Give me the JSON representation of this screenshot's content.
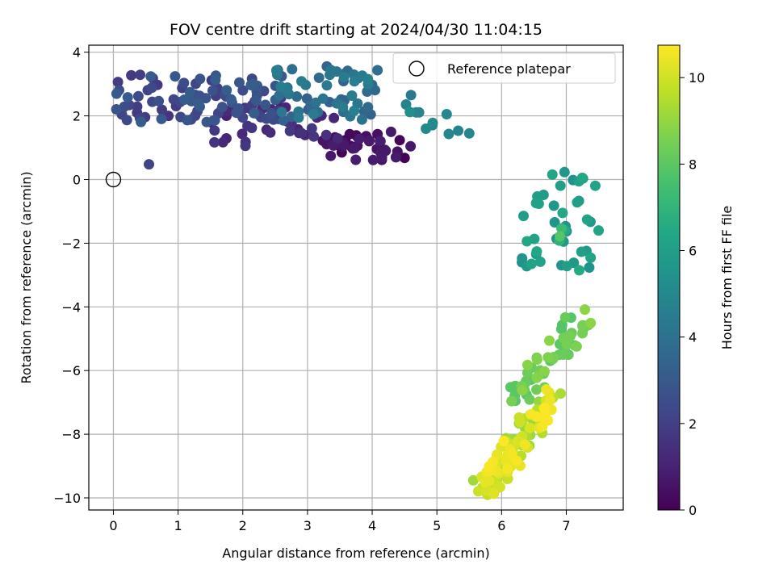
{
  "chart_data": {
    "type": "scatter",
    "title": "FOV centre drift starting at 2024/04/30 11:04:15",
    "xlabel": "Angular distance from reference (arcmin)",
    "ylabel": "Rotation from reference (arcmin)",
    "xlim": [
      -0.38,
      7.88
    ],
    "ylim": [
      -10.38,
      4.22
    ],
    "xticks": [
      0,
      1,
      2,
      3,
      4,
      5,
      6,
      7
    ],
    "yticks": [
      -10,
      -8,
      -6,
      -4,
      -2,
      0,
      2,
      4
    ],
    "grid": true,
    "legend": {
      "position": "top-right",
      "entries": [
        "Reference platepar"
      ]
    },
    "reference_point": {
      "x": 0,
      "y": 0
    },
    "colorbar": {
      "label": "Hours from first FF file",
      "range": [
        0,
        10.75
      ],
      "ticks": [
        0,
        2,
        4,
        6,
        8,
        10
      ],
      "colormap": "viridis"
    },
    "clusters": [
      {
        "hours_range": [
          0.0,
          0.9
        ],
        "x_range": [
          3.1,
          4.6
        ],
        "y_range": [
          0.6,
          1.5
        ],
        "count": 45
      },
      {
        "hours_range": [
          0.9,
          1.8
        ],
        "x_range": [
          1.5,
          3.5
        ],
        "y_range": [
          1.0,
          2.3
        ],
        "count": 40
      },
      {
        "hours_range": [
          1.8,
          3.2
        ],
        "x_range": [
          0.0,
          2.7
        ],
        "y_range": [
          1.8,
          3.3
        ],
        "count": 90
      },
      {
        "hours_range": [
          3.2,
          4.6
        ],
        "x_range": [
          2.5,
          4.1
        ],
        "y_range": [
          1.6,
          3.5
        ],
        "count": 60
      },
      {
        "hours_range": [
          4.6,
          5.4
        ],
        "x_range": [
          4.4,
          5.5
        ],
        "y_range": [
          1.4,
          2.6
        ],
        "count": 10
      },
      {
        "hours_range": [
          5.4,
          6.5
        ],
        "x_range": [
          6.3,
          7.5
        ],
        "y_range": [
          -2.8,
          0.3
        ],
        "count": 40
      },
      {
        "hours_range": [
          6.5,
          7.8
        ],
        "x_range": [
          6.8,
          7.1
        ],
        "y_range": [
          -2.0,
          -1.5
        ],
        "count": 3
      },
      {
        "hours_range": [
          7.8,
          8.9
        ],
        "x_range": [
          6.2,
          7.3
        ],
        "y_range": [
          -7.0,
          -4.3
        ],
        "count": 55
      },
      {
        "hours_range": [
          8.9,
          10.75
        ],
        "x_range": [
          5.7,
          6.8
        ],
        "y_range": [
          -9.7,
          -6.8
        ],
        "count": 110
      }
    ],
    "outliers": [
      {
        "x": 0.55,
        "y": 0.48,
        "hours": 2.2
      },
      {
        "x": 0.85,
        "y": 2.0,
        "hours": 1.6
      },
      {
        "x": 3.3,
        "y": 3.55,
        "hours": 3.4
      },
      {
        "x": 5.5,
        "y": 1.45,
        "hours": 4.9
      },
      {
        "x": 4.6,
        "y": 2.65,
        "hours": 4.4
      },
      {
        "x": 6.9,
        "y": -1.78,
        "hours": 7.9
      },
      {
        "x": 7.2,
        "y": -2.85,
        "hours": 6.5
      },
      {
        "x": 7.5,
        "y": -1.6,
        "hours": 6.3
      }
    ]
  }
}
